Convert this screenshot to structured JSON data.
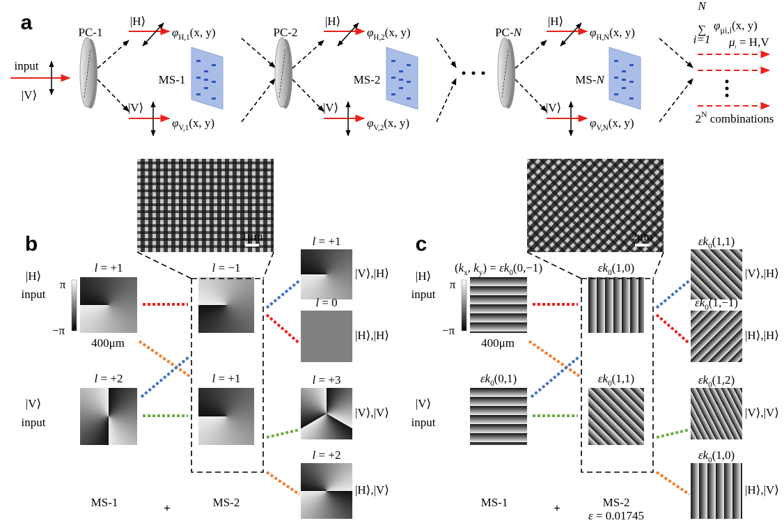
{
  "panel_a": {
    "label": "a",
    "input": "input",
    "input_state": "|V⟩",
    "stages": [
      {
        "pc": "PC-1",
        "ms": "MS-1",
        "h": "|H⟩",
        "v": "|V⟩",
        "phi_h": [
          {
            "italic": "φ"
          },
          {
            "sub": "H,1"
          },
          {
            "text": "(x, y)"
          }
        ],
        "phi_v": [
          {
            "italic": "φ"
          },
          {
            "sub": "V,1"
          },
          {
            "text": "(x, y)"
          }
        ]
      },
      {
        "pc": "PC-2",
        "ms": "MS-2",
        "h": "|H⟩",
        "v": "|V⟩",
        "phi_h": [
          {
            "italic": "φ"
          },
          {
            "sub": "H,2"
          },
          {
            "text": "(x, y)"
          }
        ],
        "phi_v": [
          {
            "italic": "φ"
          },
          {
            "sub": "V,2"
          },
          {
            "text": "(x, y)"
          }
        ]
      },
      {
        "pc": [
          {
            "text": "PC-"
          },
          {
            "italic": "N"
          }
        ],
        "ms": [
          {
            "text": "MS-"
          },
          {
            "italic": "N"
          }
        ],
        "h": "|H⟩",
        "v": "|V⟩",
        "phi_h": [
          {
            "italic": "φ"
          },
          {
            "sub": "H,N"
          },
          {
            "text": "(x, y)"
          }
        ],
        "phi_v": [
          {
            "italic": "φ"
          },
          {
            "sub": "V,N"
          },
          {
            "text": "(x, y)"
          }
        ]
      }
    ],
    "sum": {
      "symbol": "∑",
      "upper": "N",
      "lower": "i=1",
      "term": [
        {
          "italic": "φ"
        },
        {
          "sub": "μi,i"
        },
        {
          "text": "(x, y)"
        }
      ]
    },
    "mu_note": [
      {
        "italic": "μ"
      },
      {
        "sub": "i"
      },
      {
        "text": " = H,V"
      }
    ],
    "combinations": [
      {
        "text": "2"
      },
      {
        "sup": "N"
      },
      {
        "text": " combinations"
      }
    ]
  },
  "panel_b": {
    "label": "b",
    "scale_bar": "1μm",
    "colorbar": {
      "max": "π",
      "min": "−π"
    },
    "size": "400μm",
    "inputs": [
      {
        "state": "|H⟩",
        "label": "input"
      },
      {
        "state": "|V⟩",
        "label": "input"
      }
    ],
    "ms1": [
      [
        {
          "italic": "l"
        },
        {
          "text": " = +1"
        }
      ],
      [
        {
          "italic": "l"
        },
        {
          "text": " = +2"
        }
      ]
    ],
    "ms2": [
      [
        {
          "italic": "l"
        },
        {
          "text": " = −1"
        }
      ],
      [
        {
          "italic": "l"
        },
        {
          "text": " = +1"
        }
      ]
    ],
    "outputs": [
      {
        "title": [
          {
            "italic": "l"
          },
          {
            "text": " = +1"
          }
        ],
        "states": "|V⟩,|H⟩"
      },
      {
        "title": [
          {
            "italic": "l"
          },
          {
            "text": " = 0"
          }
        ],
        "states": "|H⟩,|H⟩"
      },
      {
        "title": [
          {
            "italic": "l"
          },
          {
            "text": " = +3"
          }
        ],
        "states": "|V⟩,|V⟩"
      },
      {
        "title": [
          {
            "italic": "l"
          },
          {
            "text": " = +2"
          }
        ],
        "states": "|H⟩,|V⟩"
      }
    ],
    "footer": {
      "ms1": "MS-1",
      "plus": "+",
      "ms2": "MS-2"
    }
  },
  "panel_c": {
    "label": "c",
    "scale_bar": "2μm",
    "colorbar": {
      "max": "π",
      "min": "−π"
    },
    "size": "400μm",
    "inputs": [
      {
        "state": "|H⟩",
        "label": "input"
      },
      {
        "state": "|V⟩",
        "label": "input"
      }
    ],
    "ms1": [
      [
        {
          "text": "("
        },
        {
          "italic": "k"
        },
        {
          "sub": "x"
        },
        {
          "text": ", "
        },
        {
          "italic": "k"
        },
        {
          "sub": "y"
        },
        {
          "text": ") = "
        },
        {
          "italic": "εk"
        },
        {
          "sub": "0"
        },
        {
          "text": "(0,−1)"
        }
      ],
      [
        {
          "italic": "εk"
        },
        {
          "sub": "0"
        },
        {
          "text": "(0,1)"
        }
      ]
    ],
    "ms2": [
      [
        {
          "italic": "εk"
        },
        {
          "sub": "0"
        },
        {
          "text": "(1,0)"
        }
      ],
      [
        {
          "italic": "εk"
        },
        {
          "sub": "0"
        },
        {
          "text": "(1,1)"
        }
      ]
    ],
    "outputs": [
      {
        "title": [
          {
            "italic": "εk"
          },
          {
            "sub": "0"
          },
          {
            "text": "(1,1)"
          }
        ],
        "states": "|V⟩,|H⟩"
      },
      {
        "title": [
          {
            "italic": "εk"
          },
          {
            "sub": "0"
          },
          {
            "text": "(1,−1)"
          }
        ],
        "states": "|H⟩,|H⟩"
      },
      {
        "title": [
          {
            "italic": "εk"
          },
          {
            "sub": "0"
          },
          {
            "text": "(1,2)"
          }
        ],
        "states": "|V⟩,|V⟩"
      },
      {
        "title": [
          {
            "italic": "εk"
          },
          {
            "sub": "0"
          },
          {
            "text": "(1,0)"
          }
        ],
        "states": "|H⟩,|V⟩"
      }
    ],
    "footer": {
      "ms1": "MS-1",
      "plus": "+",
      "ms2": "MS-2"
    },
    "epsilon": [
      {
        "italic": "ε"
      },
      {
        "text": " = 0.01745"
      }
    ]
  }
}
